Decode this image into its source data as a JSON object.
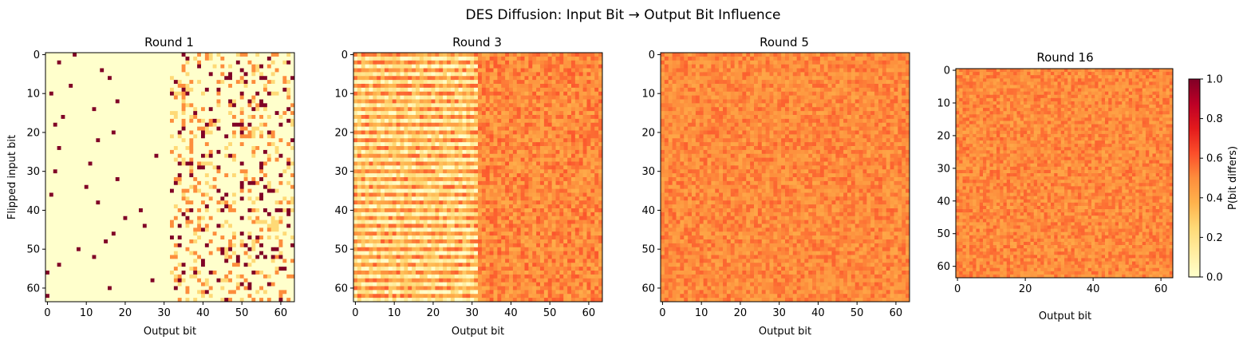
{
  "figure": {
    "title": "DES Diffusion: Input Bit → Output Bit Influence"
  },
  "chart_data": [
    {
      "type": "heatmap",
      "title": "Round 1",
      "xlabel": "Output bit",
      "ylabel": "Flipped input bit",
      "xlim": [
        0,
        63
      ],
      "ylim": [
        0,
        63
      ],
      "x_ticks": [
        "0",
        "10",
        "20",
        "30",
        "40",
        "50",
        "60"
      ],
      "y_ticks": [
        "0",
        "10",
        "20",
        "30",
        "40",
        "50",
        "60"
      ],
      "pattern": "Left half (output bits 0-31) mostly 0.0 with a single 1.0 cell per input row; right half (bits 32-63) sparse cells between 0.25 and 1.0"
    },
    {
      "type": "heatmap",
      "title": "Round 3",
      "xlabel": "Output bit",
      "ylabel": "",
      "xlim": [
        0,
        63
      ],
      "ylim": [
        0,
        63
      ],
      "x_ticks": [
        "0",
        "10",
        "20",
        "30",
        "40",
        "50",
        "60"
      ],
      "y_ticks": [
        "0",
        "10",
        "20",
        "30",
        "40",
        "50",
        "60"
      ],
      "pattern": "Horizontal striping in left half with values 0.0-0.6; right half mostly 0.4-0.6"
    },
    {
      "type": "heatmap",
      "title": "Round 5",
      "xlabel": "Output bit",
      "ylabel": "",
      "xlim": [
        0,
        63
      ],
      "ylim": [
        0,
        63
      ],
      "x_ticks": [
        "0",
        "10",
        "20",
        "30",
        "40",
        "50",
        "60"
      ],
      "y_ticks": [
        "0",
        "10",
        "20",
        "30",
        "40",
        "50",
        "60"
      ],
      "pattern": "Uniform values around 0.5 (0.4-0.6)"
    },
    {
      "type": "heatmap",
      "title": "Round 16",
      "xlabel": "Output bit",
      "ylabel": "",
      "xlim": [
        0,
        63
      ],
      "ylim": [
        0,
        63
      ],
      "x_ticks": [
        "0",
        "20",
        "40",
        "60"
      ],
      "y_ticks": [
        "0",
        "10",
        "20",
        "30",
        "40",
        "50",
        "60"
      ],
      "pattern": "Uniform values around 0.5 (0.4-0.6)"
    }
  ],
  "colorbar": {
    "label": "P(bit differs)",
    "range": [
      0.0,
      1.0
    ],
    "ticks": [
      "0.0",
      "0.2",
      "0.4",
      "0.6",
      "0.8",
      "1.0"
    ],
    "colormap": "YlOrRd",
    "colors": [
      "#ffffcc",
      "#ffeda0",
      "#fed976",
      "#feb24c",
      "#fd8d3c",
      "#fc4e2a",
      "#e31a1c",
      "#bd0026",
      "#800026"
    ]
  }
}
